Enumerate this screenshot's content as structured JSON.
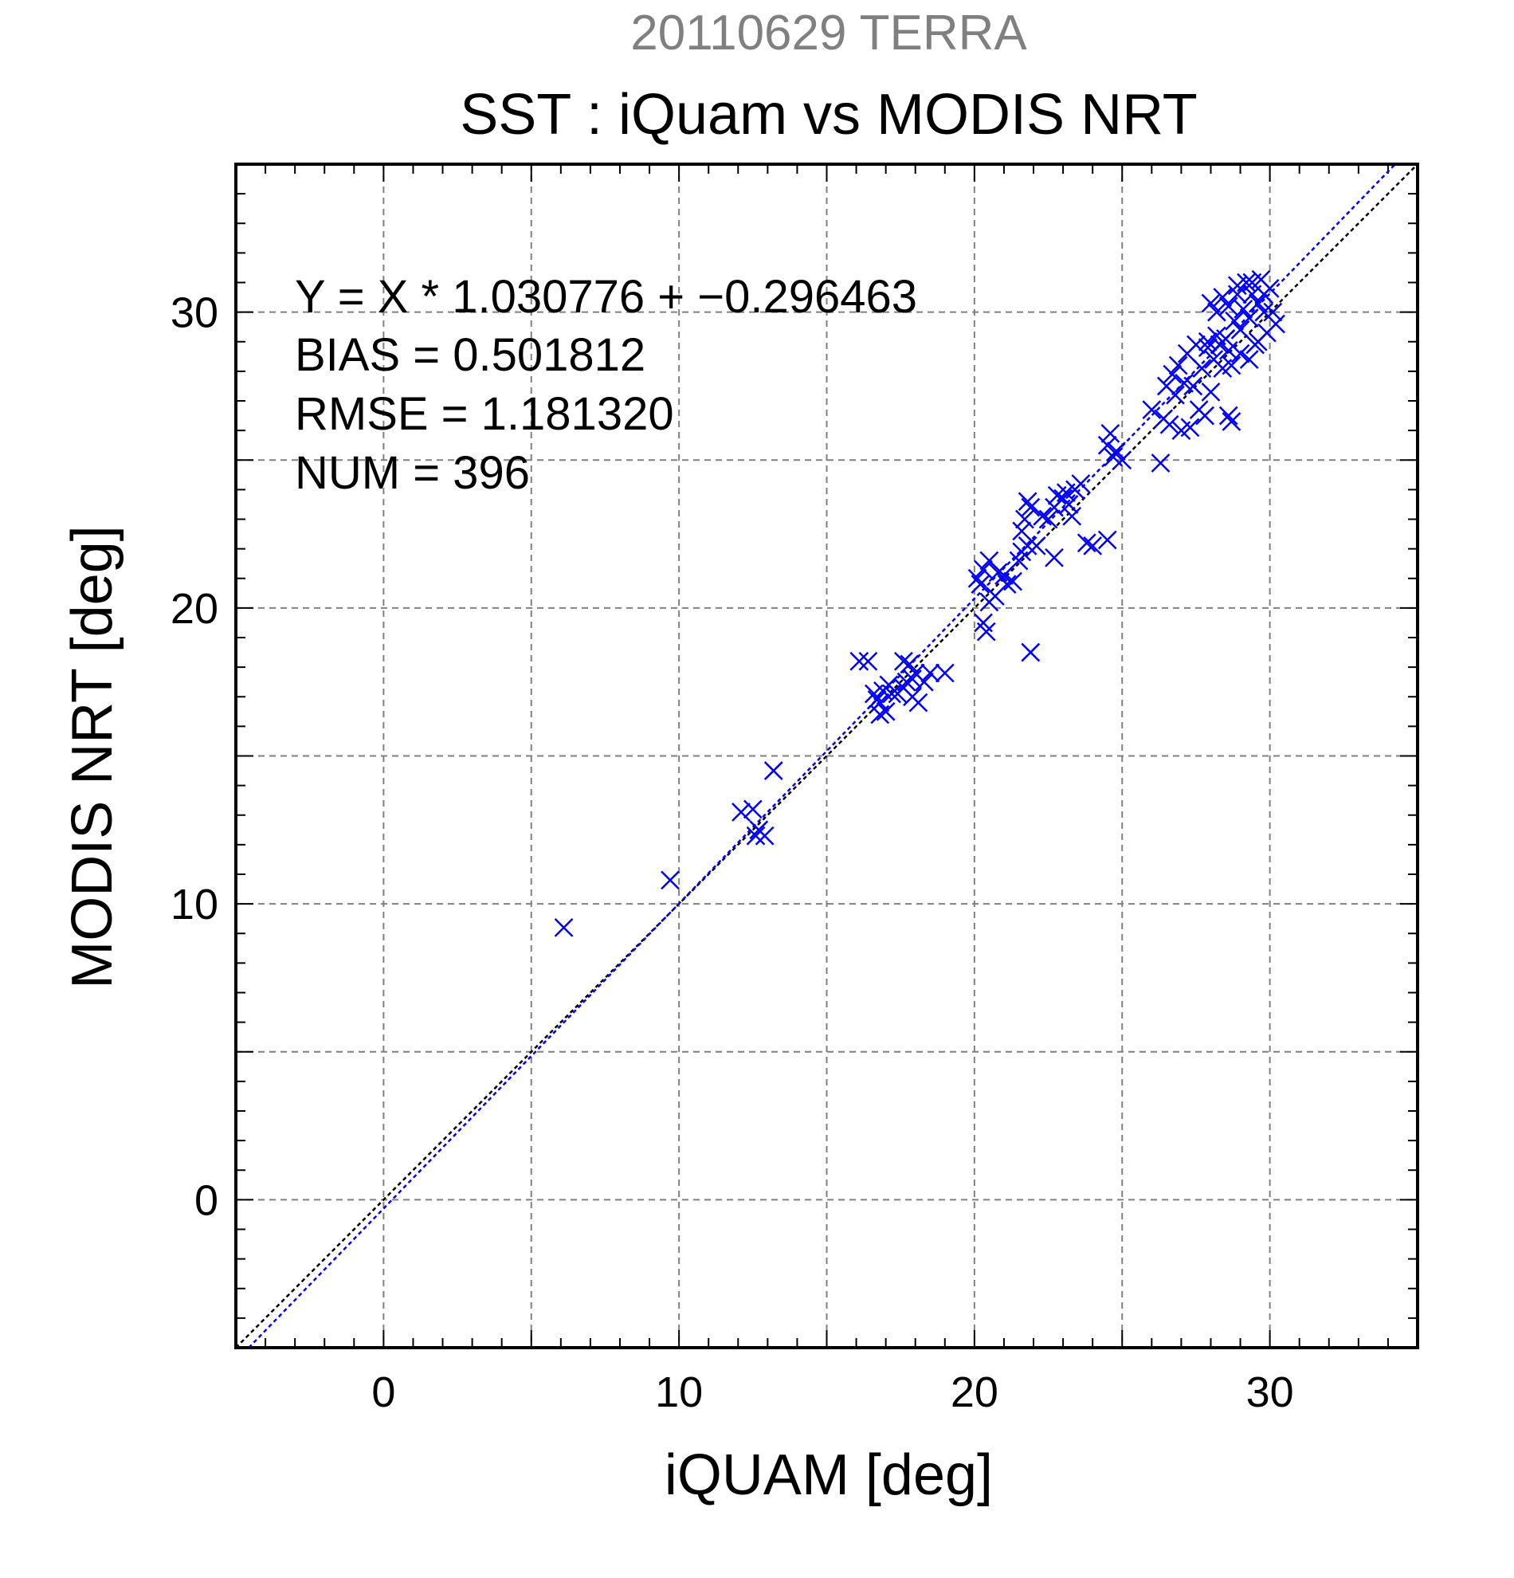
{
  "chart_data": {
    "type": "scatter",
    "title_date": "20110629 TERRA",
    "title": "SST : iQuam vs MODIS NRT",
    "xlabel": "iQUAM [deg]",
    "ylabel": "MODIS NRT [deg]",
    "xlim": [
      -5,
      35
    ],
    "ylim": [
      -5,
      35
    ],
    "x_ticks": [
      0,
      10,
      20,
      30
    ],
    "x_tick_labels": [
      "0",
      "10",
      "20",
      "30"
    ],
    "y_ticks": [
      0,
      10,
      20,
      30
    ],
    "y_tick_labels": [
      "0",
      "10",
      "20",
      "30"
    ],
    "grid": true,
    "grid_step": 5,
    "stats": {
      "equation": "Y = X * 1.030776 + −0.296463",
      "bias": "BIAS = 0.501812",
      "rmse": "RMSE = 1.181320",
      "num": "NUM = 396"
    },
    "regression": {
      "slope": 1.030776,
      "intercept": -0.296463
    },
    "colors": {
      "points": "#0000ff",
      "fit_line": "#0000ff",
      "identity_line": "#000000",
      "grid": "#808080"
    },
    "series": [
      {
        "marker": "x",
        "points": [
          [
            6.1,
            9.2
          ],
          [
            9.7,
            10.8
          ],
          [
            12.1,
            13.1
          ],
          [
            12.5,
            13.2
          ],
          [
            12.6,
            12.3
          ],
          [
            12.9,
            12.3
          ],
          [
            13.2,
            14.5
          ],
          [
            12.7,
            12.5
          ],
          [
            16.1,
            18.2
          ],
          [
            16.4,
            18.2
          ],
          [
            16.6,
            17.1
          ],
          [
            16.8,
            16.8
          ],
          [
            16.9,
            17.2
          ],
          [
            17.0,
            16.5
          ],
          [
            16.8,
            16.4
          ],
          [
            17.2,
            17.1
          ],
          [
            17.4,
            17.1
          ],
          [
            17.6,
            17.3
          ],
          [
            17.7,
            17.5
          ],
          [
            17.8,
            18.1
          ],
          [
            17.6,
            18.2
          ],
          [
            17.9,
            17.6
          ],
          [
            18.0,
            17.8
          ],
          [
            18.1,
            16.8
          ],
          [
            17.9,
            17.0
          ],
          [
            18.3,
            17.5
          ],
          [
            18.5,
            17.8
          ],
          [
            19.0,
            17.8
          ],
          [
            16.7,
            16.9
          ],
          [
            17.1,
            17.4
          ],
          [
            20.1,
            21.0
          ],
          [
            20.3,
            21.3
          ],
          [
            20.5,
            21.6
          ],
          [
            20.2,
            20.8
          ],
          [
            20.3,
            19.5
          ],
          [
            20.4,
            19.2
          ],
          [
            20.5,
            20.2
          ],
          [
            20.7,
            20.4
          ],
          [
            20.8,
            21.2
          ],
          [
            21.0,
            21.1
          ],
          [
            21.1,
            20.8
          ],
          [
            21.3,
            20.9
          ],
          [
            21.5,
            21.6
          ],
          [
            21.6,
            21.9
          ],
          [
            21.8,
            22.1
          ],
          [
            21.9,
            18.5
          ],
          [
            21.6,
            22.6
          ],
          [
            21.7,
            23.0
          ],
          [
            21.8,
            23.6
          ],
          [
            21.9,
            23.4
          ],
          [
            22.1,
            22.1
          ],
          [
            22.3,
            23.1
          ],
          [
            22.5,
            23.0
          ],
          [
            22.7,
            23.4
          ],
          [
            22.8,
            23.8
          ],
          [
            22.7,
            21.7
          ],
          [
            23.0,
            23.7
          ],
          [
            23.1,
            23.9
          ],
          [
            23.2,
            23.5
          ],
          [
            23.4,
            24.0
          ],
          [
            23.6,
            24.2
          ],
          [
            23.8,
            22.2
          ],
          [
            24.0,
            22.1
          ],
          [
            24.5,
            22.3
          ],
          [
            24.6,
            25.9
          ],
          [
            24.5,
            25.5
          ],
          [
            24.7,
            25.1
          ],
          [
            25.0,
            25.0
          ],
          [
            24.8,
            25.3
          ],
          [
            23.3,
            23.1
          ],
          [
            26.0,
            26.7
          ],
          [
            26.3,
            24.9
          ],
          [
            26.4,
            26.4
          ],
          [
            26.6,
            26.2
          ],
          [
            26.5,
            27.5
          ],
          [
            26.7,
            27.9
          ],
          [
            26.8,
            27.2
          ],
          [
            26.9,
            28.2
          ],
          [
            27.0,
            26.0
          ],
          [
            27.1,
            27.6
          ],
          [
            27.2,
            28.6
          ],
          [
            27.3,
            26.1
          ],
          [
            27.4,
            27.5
          ],
          [
            27.5,
            28.9
          ],
          [
            27.6,
            26.7
          ],
          [
            27.7,
            28.1
          ],
          [
            27.8,
            26.5
          ],
          [
            27.9,
            29.0
          ],
          [
            28.0,
            27.3
          ],
          [
            28.1,
            28.4
          ],
          [
            28.0,
            30.3
          ],
          [
            28.2,
            29.2
          ],
          [
            28.3,
            28.9
          ],
          [
            28.4,
            30.5
          ],
          [
            28.5,
            29.1
          ],
          [
            28.6,
            30.2
          ],
          [
            28.6,
            26.5
          ],
          [
            28.7,
            26.3
          ],
          [
            28.8,
            29.7
          ],
          [
            28.9,
            30.9
          ],
          [
            29.0,
            29.4
          ],
          [
            29.1,
            30.1
          ],
          [
            29.2,
            31.0
          ],
          [
            29.3,
            29.8
          ],
          [
            29.4,
            30.6
          ],
          [
            29.5,
            28.9
          ],
          [
            29.6,
            30.3
          ],
          [
            29.7,
            31.1
          ],
          [
            29.8,
            30.0
          ],
          [
            29.9,
            29.3
          ],
          [
            30.0,
            30.8
          ],
          [
            30.1,
            30.0
          ],
          [
            30.2,
            29.6
          ],
          [
            29.0,
            28.6
          ],
          [
            28.7,
            28.2
          ],
          [
            29.3,
            28.4
          ],
          [
            28.4,
            28.1
          ],
          [
            27.9,
            28.8
          ],
          [
            29.6,
            29.0
          ],
          [
            28.2,
            30.0
          ],
          [
            28.9,
            30.6
          ],
          [
            29.4,
            31.0
          ],
          [
            28.6,
            28.7
          ],
          [
            29.8,
            30.6
          ]
        ]
      }
    ]
  }
}
